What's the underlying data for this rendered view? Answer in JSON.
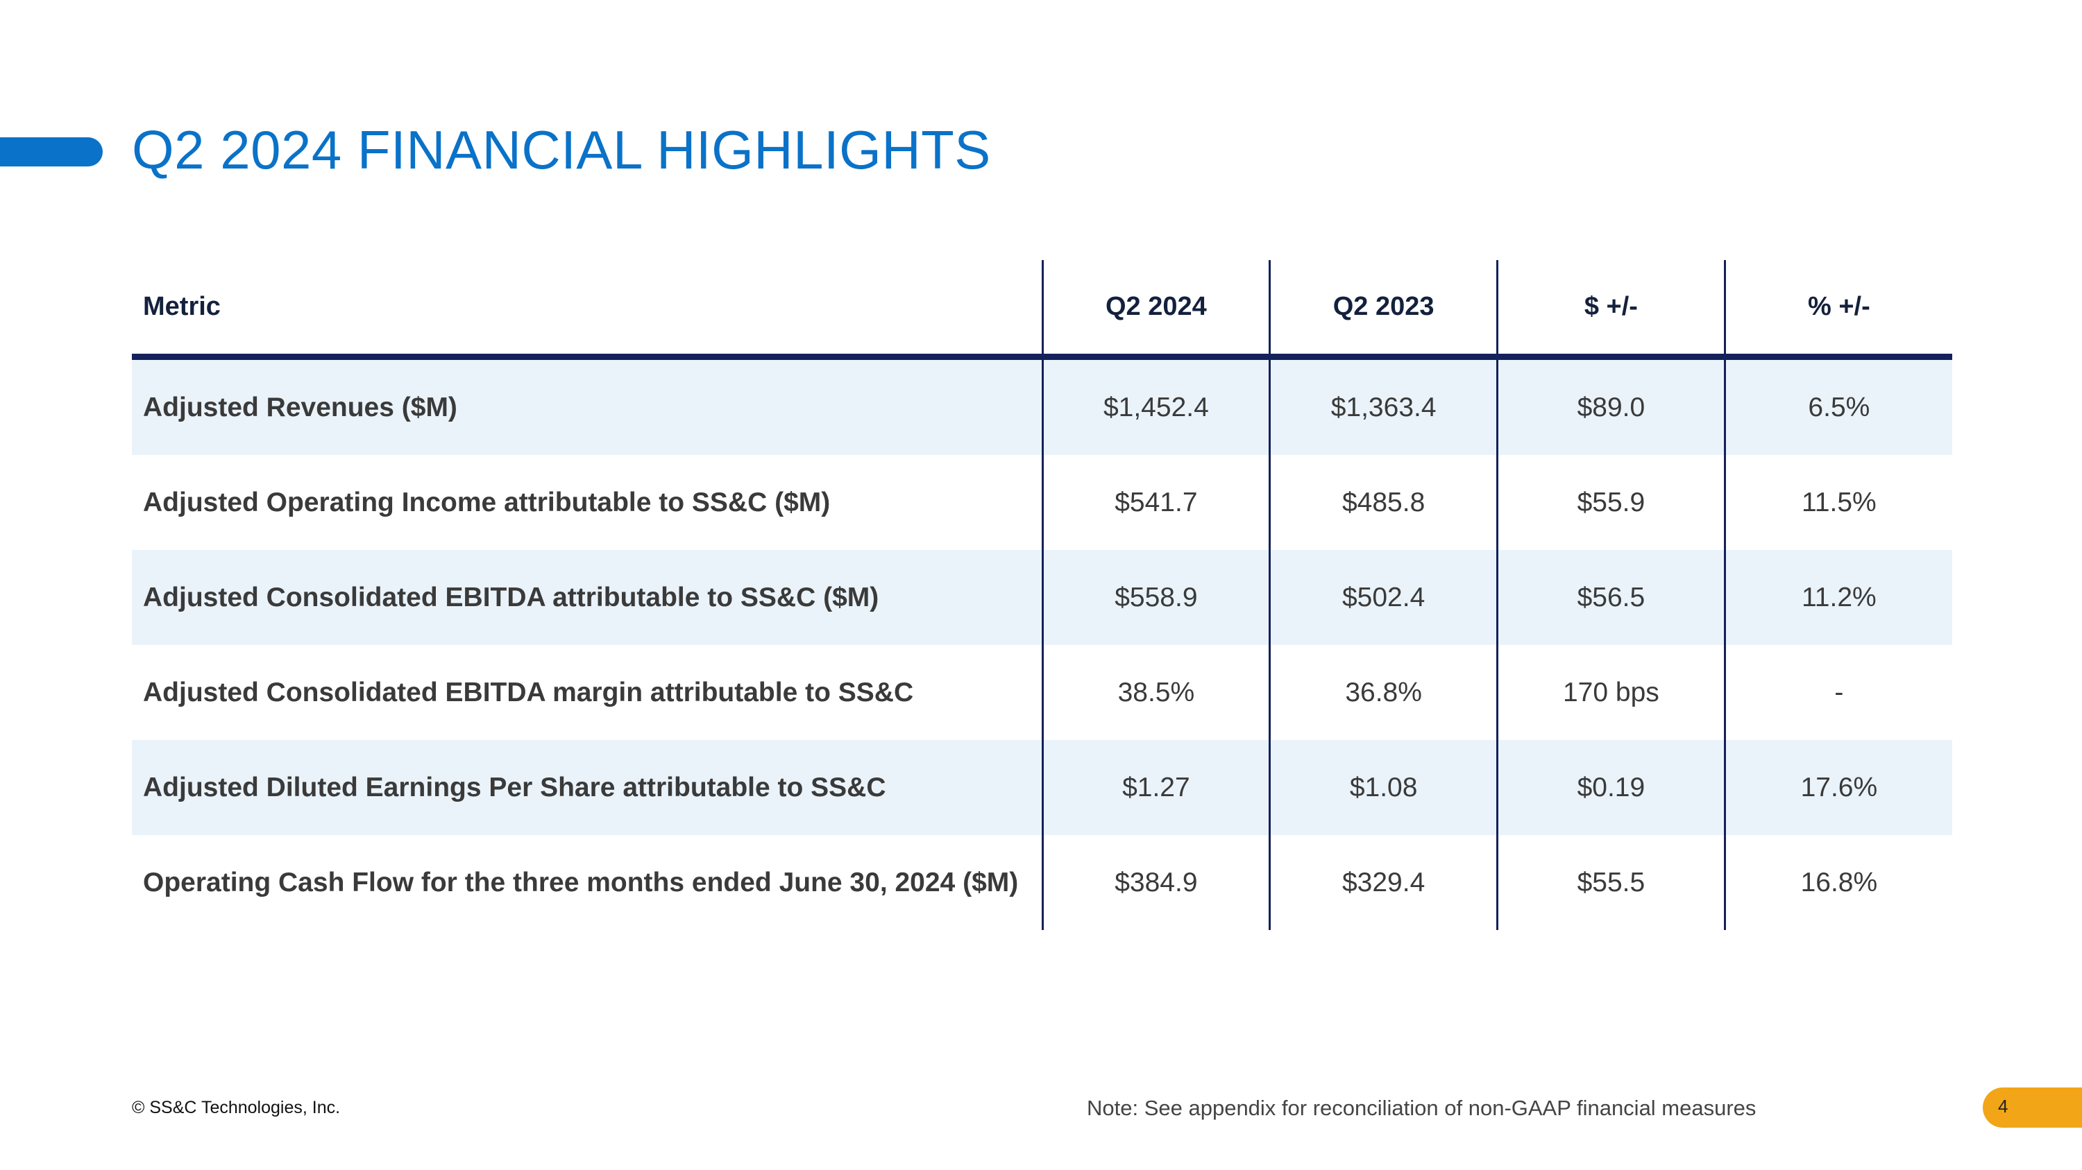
{
  "title": "Q2 2024 FINANCIAL HIGHLIGHTS",
  "table": {
    "headers": {
      "metric": "Metric",
      "q2_2024": "Q2 2024",
      "q2_2023": "Q2 2023",
      "dollar_change": "$ +/-",
      "pct_change": "% +/-"
    },
    "rows": [
      {
        "metric": "Adjusted Revenues ($M)",
        "q2_2024": "$1,452.4",
        "q2_2023": "$1,363.4",
        "dollar_change": "$89.0",
        "pct_change": "6.5%"
      },
      {
        "metric": "Adjusted Operating Income attributable to SS&C ($M)",
        "q2_2024": "$541.7",
        "q2_2023": "$485.8",
        "dollar_change": "$55.9",
        "pct_change": "11.5%"
      },
      {
        "metric": "Adjusted Consolidated EBITDA attributable to SS&C ($M)",
        "q2_2024": "$558.9",
        "q2_2023": "$502.4",
        "dollar_change": "$56.5",
        "pct_change": "11.2%"
      },
      {
        "metric": "Adjusted Consolidated EBITDA margin attributable to SS&C",
        "q2_2024": "38.5%",
        "q2_2023": "36.8%",
        "dollar_change": "170 bps",
        "pct_change": "-"
      },
      {
        "metric": "Adjusted Diluted Earnings Per Share attributable to SS&C",
        "q2_2024": "$1.27",
        "q2_2023": "$1.08",
        "dollar_change": "$0.19",
        "pct_change": "17.6%"
      },
      {
        "metric": "Operating Cash Flow for the three months ended June 30, 2024 ($M)",
        "q2_2024": "$384.9",
        "q2_2023": "$329.4",
        "dollar_change": "$55.5",
        "pct_change": "16.8%"
      }
    ]
  },
  "footer": {
    "copyright": "© SS&C Technologies, Inc.",
    "note": "Note: See appendix for reconciliation of non-GAAP financial measures",
    "page_number": "4"
  },
  "colors": {
    "accent_blue": "#0a72c8",
    "navy": "#14215a",
    "row_shade": "#eaf3fa",
    "page_badge": "#f2a516"
  }
}
